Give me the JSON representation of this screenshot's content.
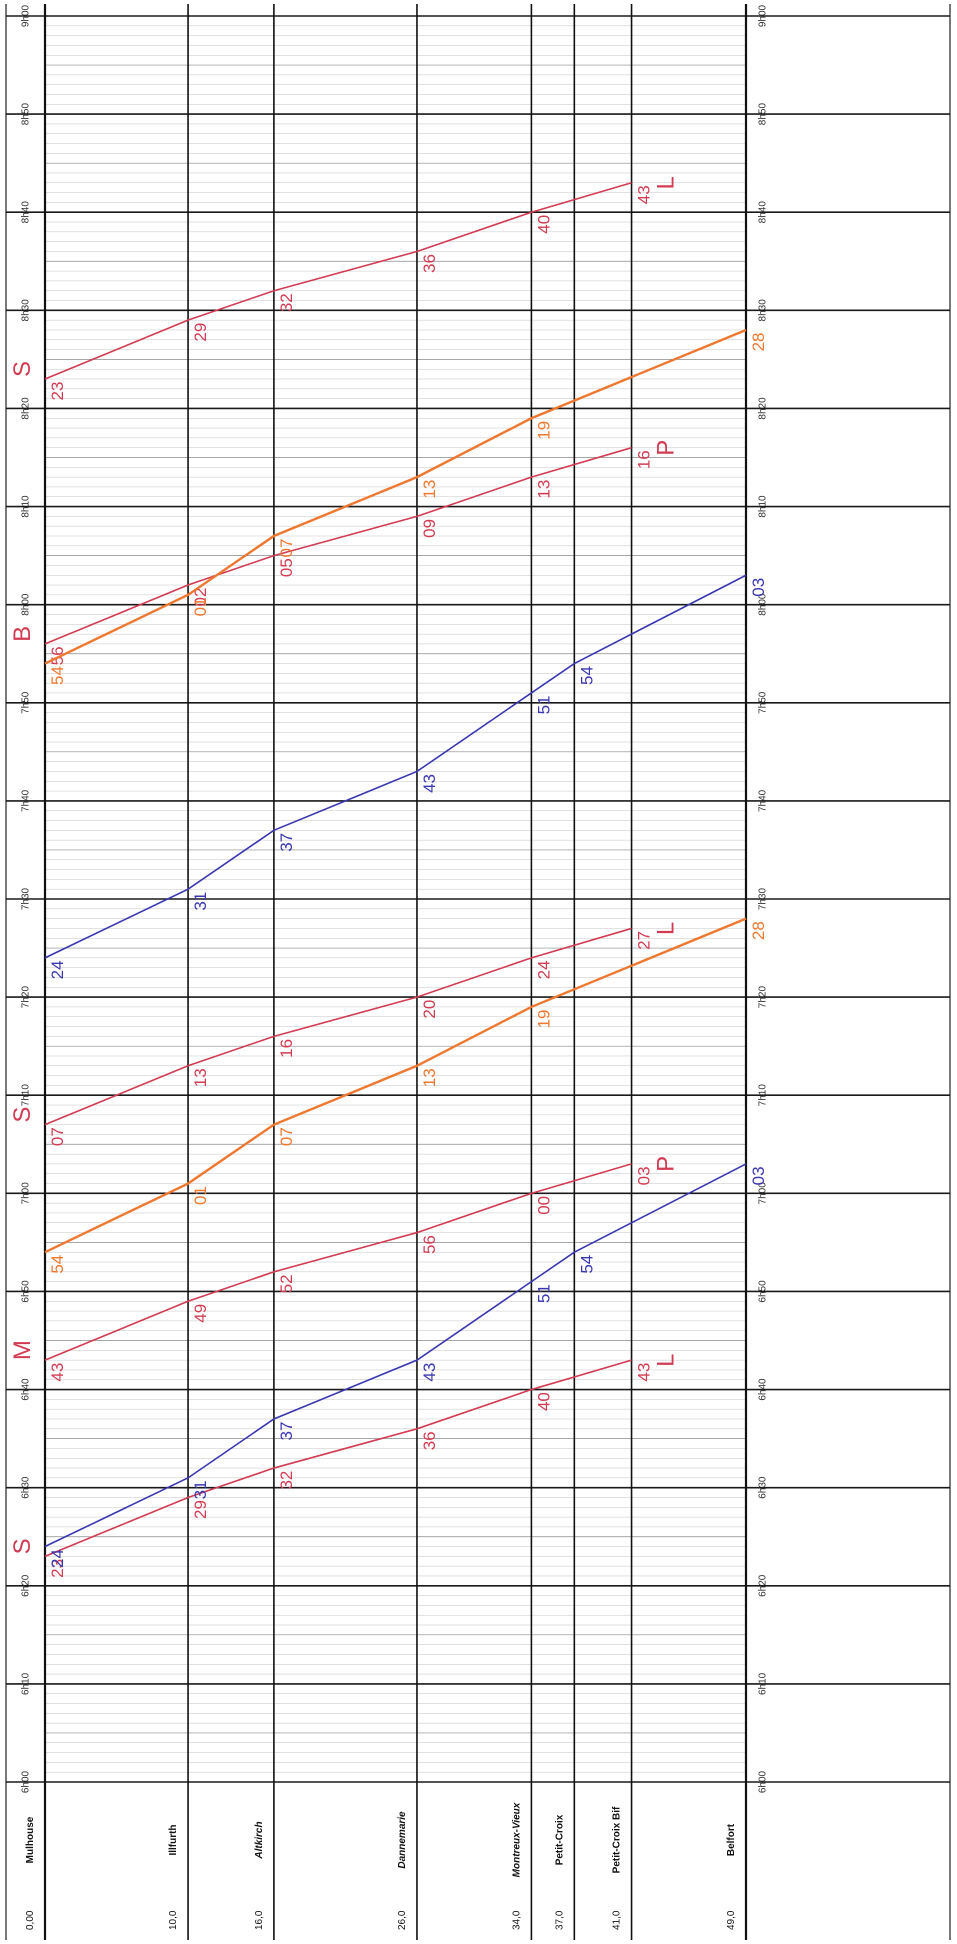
{
  "chart_data": {
    "type": "line",
    "title": "",
    "xlabel": "",
    "ylabel": "",
    "time_range": [
      "6h00",
      "9h00"
    ],
    "km_range": [
      0,
      49
    ],
    "time_ticks": [
      "6h00",
      "6h10",
      "6h20",
      "6h30",
      "6h40",
      "6h50",
      "7h00",
      "7h10",
      "7h20",
      "7h30",
      "7h40",
      "7h50",
      "8h00",
      "8h10",
      "8h20",
      "8h30",
      "8h40",
      "8h50",
      "9h00"
    ],
    "stations": [
      {
        "km": 0,
        "km_label": "0,00",
        "name": "Mulhouse",
        "italic": false
      },
      {
        "km": 10,
        "km_label": "10,0",
        "name": "Illfurth",
        "italic": false
      },
      {
        "km": 16,
        "km_label": "16,0",
        "name": "Altkirch",
        "italic": true
      },
      {
        "km": 26,
        "km_label": "26,0",
        "name": "Dannemarie",
        "italic": true
      },
      {
        "km": 34,
        "km_label": "34,0",
        "name": "Montreux-Vieux",
        "italic": true
      },
      {
        "km": 37,
        "km_label": "37,0",
        "name": "Petit-Croix",
        "italic": false
      },
      {
        "km": 41,
        "km_label": "41,0",
        "name": "Petit-Croix Bif",
        "italic": false
      },
      {
        "km": 49,
        "km_label": "49,0",
        "name": "Belfort",
        "italic": false
      }
    ],
    "colors": {
      "red": "#d23c52",
      "orange": "#ee7830",
      "blue": "#3a38b0"
    },
    "series": [
      {
        "color": "red",
        "start_label": "S",
        "end_label": "L",
        "points": [
          [
            0,
            383,
            "23"
          ],
          [
            10,
            389,
            "29"
          ],
          [
            16,
            392,
            "32"
          ],
          [
            26,
            396,
            "36"
          ],
          [
            34,
            400,
            "40"
          ],
          [
            41,
            403,
            "43"
          ]
        ]
      },
      {
        "color": "blue",
        "start_label": "",
        "end_label": "",
        "points": [
          [
            0,
            384,
            "24"
          ],
          [
            10,
            391,
            "31"
          ],
          [
            16,
            397,
            "37"
          ],
          [
            26,
            403,
            "43"
          ],
          [
            34,
            411,
            "51"
          ],
          [
            37,
            414,
            "54"
          ],
          [
            49,
            423,
            "03"
          ]
        ]
      },
      {
        "color": "red",
        "start_label": "M",
        "end_label": "P",
        "points": [
          [
            0,
            403,
            "43"
          ],
          [
            10,
            409,
            "49"
          ],
          [
            16,
            412,
            "52"
          ],
          [
            26,
            416,
            "56"
          ],
          [
            34,
            420,
            "00"
          ],
          [
            41,
            423,
            "03"
          ]
        ]
      },
      {
        "color": "orange",
        "start_label": "",
        "end_label": "",
        "points": [
          [
            0,
            414,
            "54"
          ],
          [
            10,
            421,
            "01"
          ],
          [
            16,
            427,
            "07"
          ],
          [
            26,
            433,
            "13"
          ],
          [
            34,
            439,
            "19"
          ],
          [
            49,
            448,
            "28"
          ]
        ]
      },
      {
        "color": "red",
        "start_label": "S",
        "end_label": "L",
        "points": [
          [
            0,
            427,
            "07"
          ],
          [
            10,
            433,
            "13"
          ],
          [
            16,
            436,
            "16"
          ],
          [
            26,
            440,
            "20"
          ],
          [
            34,
            444,
            "24"
          ],
          [
            41,
            447,
            "27"
          ]
        ]
      },
      {
        "color": "blue",
        "start_label": "",
        "end_label": "",
        "points": [
          [
            0,
            444,
            "24"
          ],
          [
            10,
            451,
            "31"
          ],
          [
            16,
            457,
            "37"
          ],
          [
            26,
            463,
            "43"
          ],
          [
            34,
            471,
            "51"
          ],
          [
            37,
            474,
            "54"
          ],
          [
            49,
            483,
            "03"
          ]
        ]
      },
      {
        "color": "red",
        "start_label": "B",
        "end_label": "P",
        "points": [
          [
            0,
            476,
            "56"
          ],
          [
            10,
            482,
            "02"
          ],
          [
            16,
            485,
            "05"
          ],
          [
            26,
            489,
            "09"
          ],
          [
            34,
            493,
            "13"
          ],
          [
            41,
            496,
            "16"
          ]
        ]
      },
      {
        "color": "orange",
        "start_label": "",
        "end_label": "",
        "points": [
          [
            0,
            474,
            "54"
          ],
          [
            10,
            481,
            "01"
          ],
          [
            16,
            487,
            "07"
          ],
          [
            26,
            493,
            "13"
          ],
          [
            34,
            499,
            "19"
          ],
          [
            49,
            508,
            "28"
          ]
        ]
      },
      {
        "color": "red",
        "start_label": "S",
        "end_label": "L",
        "points": [
          [
            0,
            503,
            "23"
          ],
          [
            10,
            509,
            "29"
          ],
          [
            16,
            512,
            "32"
          ],
          [
            26,
            516,
            "36"
          ],
          [
            34,
            520,
            "40"
          ],
          [
            41,
            523,
            "43"
          ]
        ]
      }
    ],
    "grid": true,
    "legend": "none"
  }
}
